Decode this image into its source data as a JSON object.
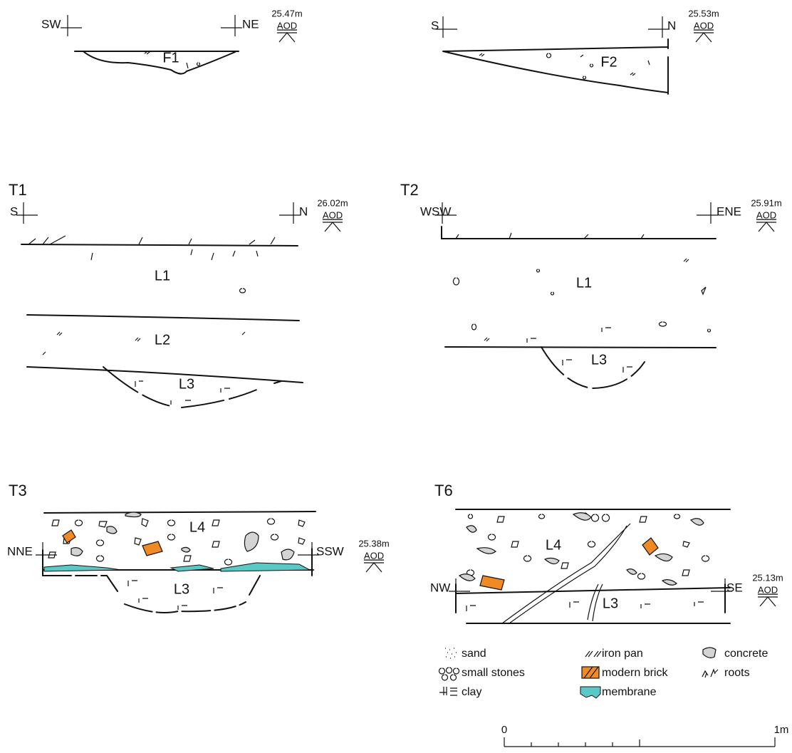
{
  "sections": [
    {
      "left": "SW",
      "right": "NE",
      "level": "25.47m",
      "datum": "AOD",
      "layers": [
        "F1"
      ]
    },
    {
      "left": "S",
      "right": "N",
      "level": "25.53m",
      "datum": "AOD",
      "layers": [
        "F2"
      ]
    },
    {
      "title": "T1",
      "left": "S",
      "right": "N",
      "level": "26.02m",
      "datum": "AOD",
      "layers": [
        "L1",
        "L2",
        "L3"
      ]
    },
    {
      "title": "T2",
      "left": "WSW",
      "right": "ENE",
      "level": "25.91m",
      "datum": "AOD",
      "layers": [
        "L1",
        "L3"
      ]
    },
    {
      "title": "T3",
      "left": "NNE",
      "right": "SSW",
      "level": "25.38m",
      "datum": "AOD",
      "layers": [
        "L4",
        "L3"
      ]
    },
    {
      "title": "T6",
      "left": "NW",
      "right": "SE",
      "level": "25.13m",
      "datum": "AOD",
      "layers": [
        "L4",
        "L3"
      ]
    }
  ],
  "legend": [
    "sand",
    "small stones",
    "clay",
    "iron pan",
    "modern brick",
    "membrane",
    "concrete",
    "roots"
  ],
  "scale": {
    "start": "0",
    "end": "1m"
  }
}
